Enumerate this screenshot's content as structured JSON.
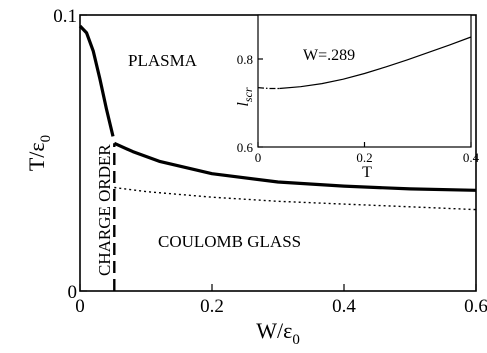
{
  "chart_data": [
    {
      "type": "line",
      "xlabel": "W/ε",
      "xlabel_sub": "0",
      "ylabel": "T/ε",
      "ylabel_sub": "0",
      "xlim": [
        0,
        0.6
      ],
      "ylim": [
        0,
        0.1
      ],
      "xticks": [
        {
          "value": 0,
          "label": "0"
        },
        {
          "value": 0.2,
          "label": "0.2"
        },
        {
          "value": 0.4,
          "label": "0.4"
        },
        {
          "value": 0.6,
          "label": "0.6"
        }
      ],
      "yticks": [
        {
          "value": 0,
          "label": "0"
        },
        {
          "value": 0.1,
          "label": "0.1"
        }
      ],
      "grid": false,
      "regions": {
        "plasma": "PLASMA",
        "charge_order": "CHARGE ORDER",
        "coulomb_glass": "COULOMB GLASS"
      },
      "series": [
        {
          "style": "thick-solid",
          "x": [
            0,
            0.01,
            0.02,
            0.03,
            0.04,
            0.05
          ],
          "y": [
            0.096,
            0.0935,
            0.087,
            0.077,
            0.066,
            0.056
          ]
        },
        {
          "style": "thick-solid",
          "x": [
            0.052,
            0.08,
            0.12,
            0.2,
            0.3,
            0.4,
            0.5,
            0.6
          ],
          "y": [
            0.0535,
            0.0505,
            0.047,
            0.0425,
            0.0395,
            0.038,
            0.037,
            0.0365
          ]
        },
        {
          "style": "dotted",
          "x": [
            0.052,
            0.1,
            0.2,
            0.3,
            0.4,
            0.5,
            0.6
          ],
          "y": [
            0.0375,
            0.036,
            0.034,
            0.0325,
            0.0315,
            0.0305,
            0.0295
          ]
        },
        {
          "style": "dashed-vertical",
          "x": [
            0.052,
            0.052
          ],
          "y": [
            0,
            0.0535
          ]
        }
      ]
    },
    {
      "type": "line",
      "annotation": "W=.289",
      "xlabel": "T",
      "ylabel": "l",
      "ylabel_sub": "scr",
      "xlim": [
        0,
        0.4
      ],
      "ylim": [
        0.6,
        0.9
      ],
      "xticks": [
        {
          "value": 0,
          "label": "0"
        },
        {
          "value": 0.2,
          "label": "0.2"
        },
        {
          "value": 0.4,
          "label": "0.4"
        }
      ],
      "yticks": [
        {
          "value": 0.6,
          "label": "0.6"
        },
        {
          "value": 0.8,
          "label": "0.8"
        }
      ],
      "grid": false,
      "series": [
        {
          "style": "dash-dot",
          "x": [
            0,
            0.02,
            0.04
          ],
          "y": [
            0.735,
            0.733,
            0.733
          ]
        },
        {
          "style": "solid",
          "x": [
            0.04,
            0.08,
            0.12,
            0.16,
            0.2,
            0.24,
            0.28,
            0.32,
            0.36,
            0.4
          ],
          "y": [
            0.733,
            0.737,
            0.744,
            0.754,
            0.767,
            0.782,
            0.798,
            0.815,
            0.832,
            0.85
          ]
        }
      ]
    }
  ]
}
